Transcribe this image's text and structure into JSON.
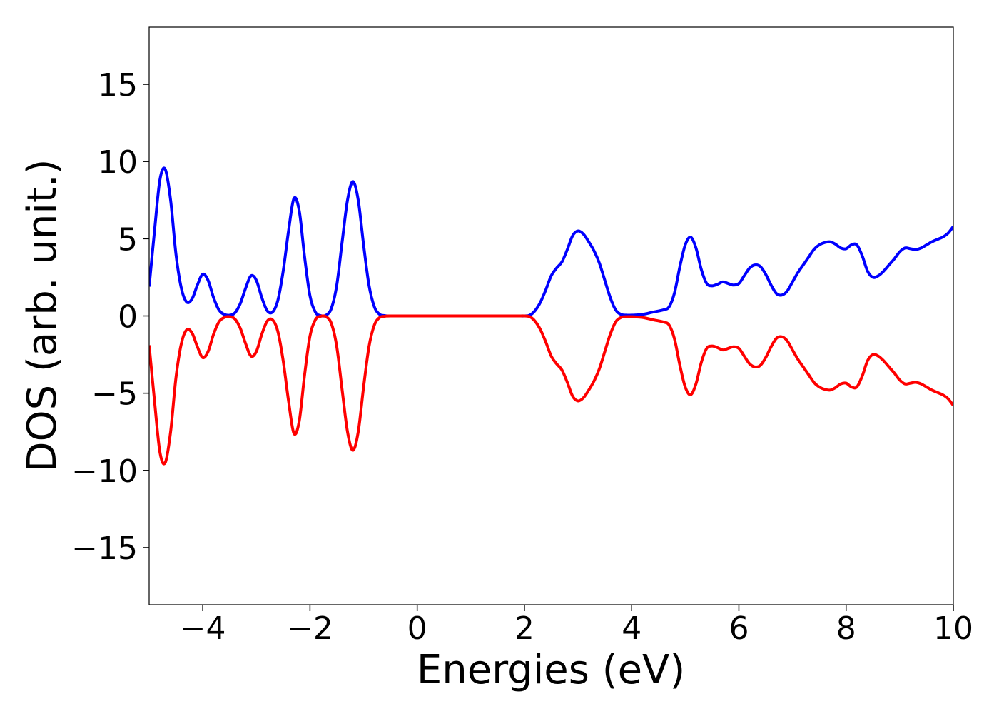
{
  "chart_data": {
    "type": "line",
    "title": "",
    "xlabel": "Energies (eV)",
    "ylabel": "DOS (arb. unit.)",
    "xlim": [
      -5,
      10
    ],
    "ylim": [
      -18.7,
      18.7
    ],
    "xticks": [
      -4,
      -2,
      0,
      2,
      4,
      6,
      8,
      10
    ],
    "xtick_labels": [
      "−4",
      "−2",
      "0",
      "2",
      "4",
      "6",
      "8",
      "10"
    ],
    "yticks": [
      15,
      10,
      5,
      0,
      -5,
      -10,
      -15
    ],
    "ytick_labels": [
      "15",
      "10",
      "5",
      "0",
      "−5",
      "−10",
      "−15"
    ],
    "grid": false,
    "legend": "none",
    "series": [
      {
        "color": "#0000ff",
        "points": [
          [
            -5.0,
            1.9
          ],
          [
            -4.9,
            5.5
          ],
          [
            -4.8,
            8.8
          ],
          [
            -4.7,
            9.5
          ],
          [
            -4.6,
            7.5
          ],
          [
            -4.5,
            4.0
          ],
          [
            -4.4,
            1.8
          ],
          [
            -4.3,
            0.9
          ],
          [
            -4.2,
            1.1
          ],
          [
            -4.1,
            2.0
          ],
          [
            -4.0,
            2.7
          ],
          [
            -3.9,
            2.3
          ],
          [
            -3.8,
            1.2
          ],
          [
            -3.7,
            0.4
          ],
          [
            -3.6,
            0.1
          ],
          [
            -3.5,
            0.05
          ],
          [
            -3.4,
            0.2
          ],
          [
            -3.3,
            0.8
          ],
          [
            -3.2,
            1.8
          ],
          [
            -3.1,
            2.6
          ],
          [
            -3.0,
            2.3
          ],
          [
            -2.9,
            1.2
          ],
          [
            -2.8,
            0.35
          ],
          [
            -2.7,
            0.25
          ],
          [
            -2.6,
            1.0
          ],
          [
            -2.5,
            2.9
          ],
          [
            -2.4,
            5.5
          ],
          [
            -2.3,
            7.6
          ],
          [
            -2.2,
            6.8
          ],
          [
            -2.1,
            3.8
          ],
          [
            -2.0,
            1.3
          ],
          [
            -1.9,
            0.25
          ],
          [
            -1.8,
            0.02
          ],
          [
            -1.7,
            0.05
          ],
          [
            -1.6,
            0.5
          ],
          [
            -1.5,
            2.0
          ],
          [
            -1.4,
            4.8
          ],
          [
            -1.3,
            7.5
          ],
          [
            -1.2,
            8.7
          ],
          [
            -1.1,
            7.5
          ],
          [
            -1.0,
            4.6
          ],
          [
            -0.9,
            2.0
          ],
          [
            -0.8,
            0.6
          ],
          [
            -0.7,
            0.1
          ],
          [
            -0.6,
            0.02
          ],
          [
            -0.5,
            0.0
          ],
          [
            0.0,
            0.0
          ],
          [
            1.0,
            0.0
          ],
          [
            1.8,
            0.0
          ],
          [
            2.0,
            0.0
          ],
          [
            2.1,
            0.05
          ],
          [
            2.2,
            0.35
          ],
          [
            2.3,
            0.9
          ],
          [
            2.4,
            1.7
          ],
          [
            2.5,
            2.6
          ],
          [
            2.6,
            3.1
          ],
          [
            2.7,
            3.5
          ],
          [
            2.8,
            4.3
          ],
          [
            2.9,
            5.2
          ],
          [
            3.0,
            5.5
          ],
          [
            3.1,
            5.3
          ],
          [
            3.2,
            4.8
          ],
          [
            3.3,
            4.2
          ],
          [
            3.4,
            3.4
          ],
          [
            3.5,
            2.3
          ],
          [
            3.6,
            1.2
          ],
          [
            3.7,
            0.4
          ],
          [
            3.8,
            0.1
          ],
          [
            3.9,
            0.05
          ],
          [
            4.0,
            0.05
          ],
          [
            4.2,
            0.1
          ],
          [
            4.4,
            0.25
          ],
          [
            4.6,
            0.4
          ],
          [
            4.7,
            0.6
          ],
          [
            4.8,
            1.5
          ],
          [
            4.9,
            3.2
          ],
          [
            5.0,
            4.6
          ],
          [
            5.1,
            5.1
          ],
          [
            5.2,
            4.4
          ],
          [
            5.3,
            3.0
          ],
          [
            5.4,
            2.1
          ],
          [
            5.5,
            1.95
          ],
          [
            5.6,
            2.05
          ],
          [
            5.7,
            2.2
          ],
          [
            5.8,
            2.1
          ],
          [
            5.9,
            2.0
          ],
          [
            6.0,
            2.1
          ],
          [
            6.1,
            2.6
          ],
          [
            6.2,
            3.1
          ],
          [
            6.3,
            3.3
          ],
          [
            6.4,
            3.2
          ],
          [
            6.5,
            2.7
          ],
          [
            6.6,
            2.0
          ],
          [
            6.7,
            1.45
          ],
          [
            6.8,
            1.35
          ],
          [
            6.9,
            1.6
          ],
          [
            7.0,
            2.2
          ],
          [
            7.1,
            2.8
          ],
          [
            7.2,
            3.3
          ],
          [
            7.3,
            3.8
          ],
          [
            7.4,
            4.3
          ],
          [
            7.5,
            4.6
          ],
          [
            7.6,
            4.75
          ],
          [
            7.7,
            4.8
          ],
          [
            7.8,
            4.65
          ],
          [
            7.9,
            4.4
          ],
          [
            8.0,
            4.35
          ],
          [
            8.1,
            4.6
          ],
          [
            8.2,
            4.6
          ],
          [
            8.3,
            3.9
          ],
          [
            8.4,
            2.9
          ],
          [
            8.5,
            2.5
          ],
          [
            8.6,
            2.6
          ],
          [
            8.7,
            2.9
          ],
          [
            8.8,
            3.3
          ],
          [
            8.9,
            3.7
          ],
          [
            9.0,
            4.15
          ],
          [
            9.1,
            4.4
          ],
          [
            9.2,
            4.35
          ],
          [
            9.3,
            4.3
          ],
          [
            9.4,
            4.4
          ],
          [
            9.5,
            4.6
          ],
          [
            9.6,
            4.8
          ],
          [
            9.7,
            4.95
          ],
          [
            9.8,
            5.1
          ],
          [
            9.9,
            5.35
          ],
          [
            10.0,
            5.8
          ]
        ]
      },
      {
        "color": "#ff0000",
        "points": [
          [
            -5.0,
            -1.9
          ],
          [
            -4.9,
            -5.5
          ],
          [
            -4.8,
            -8.8
          ],
          [
            -4.7,
            -9.5
          ],
          [
            -4.6,
            -7.5
          ],
          [
            -4.5,
            -4.0
          ],
          [
            -4.4,
            -1.8
          ],
          [
            -4.3,
            -0.9
          ],
          [
            -4.2,
            -1.1
          ],
          [
            -4.1,
            -2.0
          ],
          [
            -4.0,
            -2.7
          ],
          [
            -3.9,
            -2.3
          ],
          [
            -3.8,
            -1.2
          ],
          [
            -3.7,
            -0.4
          ],
          [
            -3.6,
            -0.1
          ],
          [
            -3.5,
            -0.05
          ],
          [
            -3.4,
            -0.2
          ],
          [
            -3.3,
            -0.8
          ],
          [
            -3.2,
            -1.8
          ],
          [
            -3.1,
            -2.6
          ],
          [
            -3.0,
            -2.3
          ],
          [
            -2.9,
            -1.2
          ],
          [
            -2.8,
            -0.35
          ],
          [
            -2.7,
            -0.25
          ],
          [
            -2.6,
            -1.0
          ],
          [
            -2.5,
            -2.9
          ],
          [
            -2.4,
            -5.5
          ],
          [
            -2.3,
            -7.6
          ],
          [
            -2.2,
            -6.8
          ],
          [
            -2.1,
            -3.8
          ],
          [
            -2.0,
            -1.3
          ],
          [
            -1.9,
            -0.25
          ],
          [
            -1.8,
            -0.02
          ],
          [
            -1.7,
            -0.05
          ],
          [
            -1.6,
            -0.5
          ],
          [
            -1.5,
            -2.0
          ],
          [
            -1.4,
            -4.8
          ],
          [
            -1.3,
            -7.5
          ],
          [
            -1.2,
            -8.7
          ],
          [
            -1.1,
            -7.5
          ],
          [
            -1.0,
            -4.6
          ],
          [
            -0.9,
            -2.0
          ],
          [
            -0.8,
            -0.6
          ],
          [
            -0.7,
            -0.1
          ],
          [
            -0.6,
            -0.02
          ],
          [
            -0.5,
            0.0
          ],
          [
            0.0,
            0.0
          ],
          [
            1.0,
            0.0
          ],
          [
            1.8,
            0.0
          ],
          [
            2.0,
            0.0
          ],
          [
            2.1,
            -0.05
          ],
          [
            2.2,
            -0.35
          ],
          [
            2.3,
            -0.9
          ],
          [
            2.4,
            -1.7
          ],
          [
            2.5,
            -2.6
          ],
          [
            2.6,
            -3.1
          ],
          [
            2.7,
            -3.5
          ],
          [
            2.8,
            -4.3
          ],
          [
            2.9,
            -5.2
          ],
          [
            3.0,
            -5.5
          ],
          [
            3.1,
            -5.3
          ],
          [
            3.2,
            -4.8
          ],
          [
            3.3,
            -4.2
          ],
          [
            3.4,
            -3.4
          ],
          [
            3.5,
            -2.3
          ],
          [
            3.6,
            -1.2
          ],
          [
            3.7,
            -0.4
          ],
          [
            3.8,
            -0.1
          ],
          [
            3.9,
            -0.05
          ],
          [
            4.0,
            -0.05
          ],
          [
            4.2,
            -0.1
          ],
          [
            4.4,
            -0.25
          ],
          [
            4.6,
            -0.4
          ],
          [
            4.7,
            -0.6
          ],
          [
            4.8,
            -1.5
          ],
          [
            4.9,
            -3.2
          ],
          [
            5.0,
            -4.6
          ],
          [
            5.1,
            -5.1
          ],
          [
            5.2,
            -4.4
          ],
          [
            5.3,
            -3.0
          ],
          [
            5.4,
            -2.1
          ],
          [
            5.5,
            -1.95
          ],
          [
            5.6,
            -2.05
          ],
          [
            5.7,
            -2.2
          ],
          [
            5.8,
            -2.1
          ],
          [
            5.9,
            -2.0
          ],
          [
            6.0,
            -2.1
          ],
          [
            6.1,
            -2.6
          ],
          [
            6.2,
            -3.1
          ],
          [
            6.3,
            -3.3
          ],
          [
            6.4,
            -3.2
          ],
          [
            6.5,
            -2.7
          ],
          [
            6.6,
            -2.0
          ],
          [
            6.7,
            -1.45
          ],
          [
            6.8,
            -1.35
          ],
          [
            6.9,
            -1.6
          ],
          [
            7.0,
            -2.2
          ],
          [
            7.1,
            -2.8
          ],
          [
            7.2,
            -3.3
          ],
          [
            7.3,
            -3.8
          ],
          [
            7.4,
            -4.3
          ],
          [
            7.5,
            -4.6
          ],
          [
            7.6,
            -4.75
          ],
          [
            7.7,
            -4.8
          ],
          [
            7.8,
            -4.65
          ],
          [
            7.9,
            -4.4
          ],
          [
            8.0,
            -4.35
          ],
          [
            8.1,
            -4.6
          ],
          [
            8.2,
            -4.6
          ],
          [
            8.3,
            -3.9
          ],
          [
            8.4,
            -2.9
          ],
          [
            8.5,
            -2.5
          ],
          [
            8.6,
            -2.6
          ],
          [
            8.7,
            -2.9
          ],
          [
            8.8,
            -3.3
          ],
          [
            8.9,
            -3.7
          ],
          [
            9.0,
            -4.15
          ],
          [
            9.1,
            -4.4
          ],
          [
            9.2,
            -4.35
          ],
          [
            9.3,
            -4.3
          ],
          [
            9.4,
            -4.4
          ],
          [
            9.5,
            -4.6
          ],
          [
            9.6,
            -4.8
          ],
          [
            9.7,
            -4.95
          ],
          [
            9.8,
            -5.1
          ],
          [
            9.9,
            -5.35
          ],
          [
            10.0,
            -5.8
          ]
        ]
      }
    ]
  }
}
